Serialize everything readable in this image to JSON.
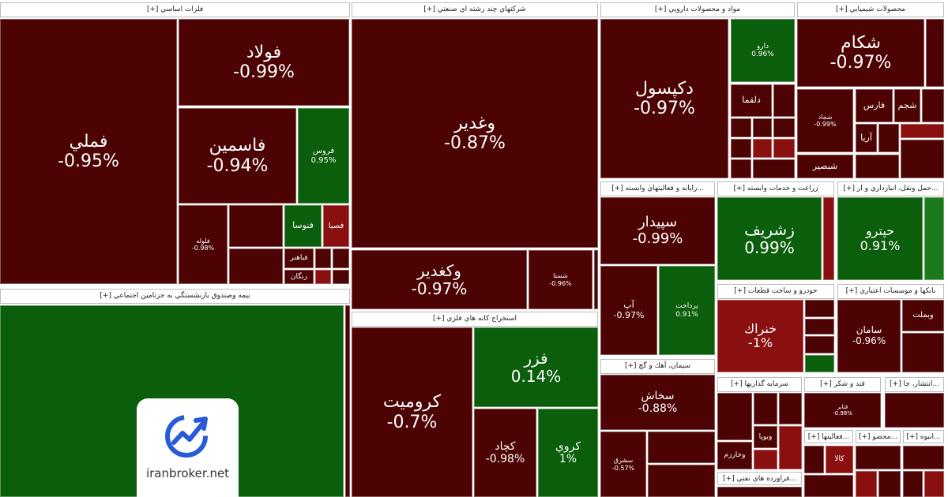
{
  "sectors": [
    {
      "title": "فلزات اساسي [+]",
      "tiles": [
        {
          "name": "فملي",
          "change": "-0.95%"
        },
        {
          "name": "فولاد",
          "change": "-0.99%"
        },
        {
          "name": "فاسمين",
          "change": "-0.94%"
        },
        {
          "name": "فروس",
          "change": "0.95%"
        },
        {
          "name": "فلوله",
          "change": "-0.98%"
        },
        {
          "name": "فنوسا"
        },
        {
          "name": "فصبا"
        },
        {
          "name": "فباهنر"
        },
        {
          "name": "زنگان"
        }
      ]
    },
    {
      "title": "بيمه وصندوق بازنشستگي به جزتامين اجتماعي [+]",
      "tiles": []
    },
    {
      "title": "شركتهاي چند رشته اي صنعتي [+]",
      "tiles": [
        {
          "name": "وغدير",
          "change": "-0.87%"
        },
        {
          "name": "وكغدير",
          "change": "-0.97%"
        },
        {
          "name": "شستا",
          "change": "-0.96%"
        }
      ]
    },
    {
      "title": "استخراج كانه هاي فلزي [+]",
      "tiles": [
        {
          "name": "كروميت",
          "change": "-0.7%"
        },
        {
          "name": "فزر",
          "change": "0.14%"
        },
        {
          "name": "كچاد",
          "change": "-0.98%"
        },
        {
          "name": "كروي",
          "change": "1%"
        }
      ]
    },
    {
      "title": "مواد و محصولات دارويي [+]",
      "tiles": [
        {
          "name": "دكپسول",
          "change": "-0.97%"
        },
        {
          "name": "دارو",
          "change": "0.96%"
        },
        {
          "name": "دلقما"
        }
      ]
    },
    {
      "title": "محصولات شيميايي [+]",
      "tiles": [
        {
          "name": "شكام",
          "change": "-0.97%"
        },
        {
          "name": "شجاد",
          "change": "-0.99%"
        },
        {
          "name": "فارس"
        },
        {
          "name": "شجم"
        },
        {
          "name": "آريا"
        },
        {
          "name": "شبصير"
        }
      ]
    },
    {
      "title": "...رايانه و فعاليتهاي وابسته [+]",
      "tiles": [
        {
          "name": "سپيدار",
          "change": "-0.99%"
        },
        {
          "name": "آپ",
          "change": "-0.97%"
        },
        {
          "name": "پرداخت",
          "change": "0.91%"
        }
      ]
    },
    {
      "title": "زراعت و خدمات وابسته [+]",
      "tiles": [
        {
          "name": "زشريف",
          "change": "0.99%"
        }
      ]
    },
    {
      "title": "...حمل ونقل، انبارداري و ار [+]",
      "tiles": [
        {
          "name": "حپترو",
          "change": "0.91%"
        }
      ]
    },
    {
      "title": "خودرو و ساخت قطعات [+]",
      "tiles": [
        {
          "name": "خنراك",
          "change": "-1%"
        }
      ]
    },
    {
      "title": "بانكها و موسسات اعتباري [+]",
      "tiles": [
        {
          "name": "سامان",
          "change": "-0.96%"
        },
        {
          "name": "وبملت"
        }
      ]
    },
    {
      "title": "سيمان، آهك و گچ [+]",
      "tiles": [
        {
          "name": "سخاش",
          "change": "-0.88%"
        },
        {
          "name": "سشرق",
          "change": "-0.57%"
        }
      ]
    },
    {
      "title": "سرمايه گذاريها [+]",
      "tiles": [
        {
          "name": "وبوپا"
        },
        {
          "name": "وخارزم"
        }
      ]
    },
    {
      "title": "قند و شكر [+]",
      "tiles": [
        {
          "name": "قثابر",
          "change": "-0.98%"
        }
      ]
    },
    {
      "title": "...انتشار، چا [+]",
      "tiles": []
    },
    {
      "title": "...فعاليتها [+]",
      "tiles": [
        {
          "name": "كالا"
        }
      ]
    },
    {
      "title": "...محصو [+]",
      "tiles": []
    },
    {
      "title": "...انبوه [+]",
      "tiles": []
    },
    {
      "title": "...فراورده هاي نفتي [+]",
      "tiles": []
    }
  ],
  "watermark": "iranbroker.net"
}
